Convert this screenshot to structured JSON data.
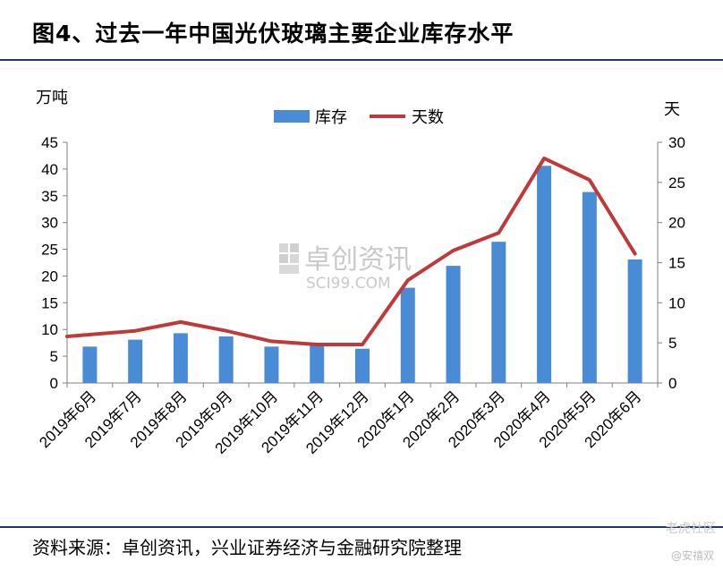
{
  "title": "图4、过去一年中国光伏玻璃主要企业库存水平",
  "source": "资料来源：卓创资讯，兴业证券经济与金融研究院整理",
  "watermark": {
    "main": "卓创资讯",
    "sub": "SCI99.COM",
    "corner": "老虎社区",
    "corner_user": "@安禧双"
  },
  "colors": {
    "bar": "#4a8bd6",
    "line": "#c0393a",
    "rule": "#1f3a6e"
  },
  "chart_data": {
    "type": "bar+line",
    "categories": [
      "2019年6月",
      "2019年7月",
      "2019年8月",
      "2019年9月",
      "2019年10月",
      "2019年11月",
      "2019年12月",
      "2020年1月",
      "2020年2月",
      "2020年3月",
      "2020年4月",
      "2020年5月",
      "2020年6月"
    ],
    "series": [
      {
        "name": "库存",
        "type": "bar",
        "axis": "left",
        "values": [
          6.8,
          8.1,
          9.3,
          8.7,
          6.8,
          7.0,
          6.4,
          17.8,
          21.9,
          26.4,
          40.6,
          35.7,
          23.1
        ]
      },
      {
        "name": "天数",
        "type": "line",
        "axis": "right",
        "values": [
          5.8,
          6.5,
          7.6,
          6.5,
          5.2,
          4.8,
          4.8,
          12.8,
          16.5,
          18.7,
          28.0,
          25.3,
          16.1
        ]
      }
    ],
    "left_axis": {
      "unit": "万吨",
      "min": 0,
      "max": 45,
      "ticks": [
        0,
        5,
        10,
        15,
        20,
        25,
        30,
        35,
        40,
        45
      ]
    },
    "right_axis": {
      "unit": "天",
      "min": 0,
      "max": 30,
      "ticks": [
        0,
        5,
        10,
        15,
        20,
        25,
        30
      ]
    },
    "grid": false,
    "legend": "top-center"
  }
}
